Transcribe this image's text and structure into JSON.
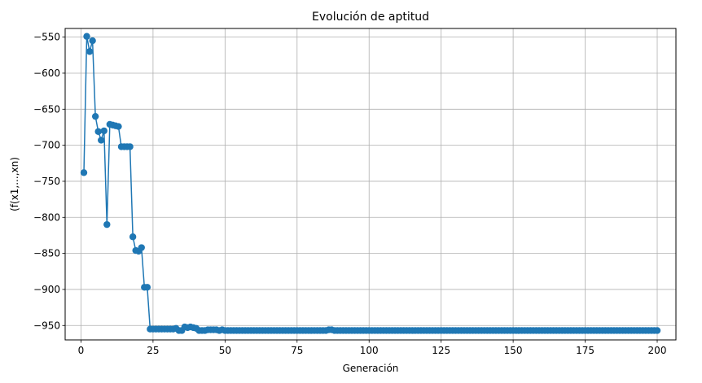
{
  "chart_data": {
    "type": "line",
    "title": "Evolución de aptitud",
    "xlabel": "Generación",
    "ylabel": "(f(x1,...,xn)",
    "xlim": [
      -5.5,
      206.5
    ],
    "ylim": [
      -970,
      -538
    ],
    "xticks": [
      0,
      25,
      50,
      75,
      100,
      125,
      150,
      175,
      200
    ],
    "yticks": [
      -550,
      -600,
      -650,
      -700,
      -750,
      -800,
      -850,
      -900,
      -950
    ],
    "grid": true,
    "markers": true,
    "color": "#1f77b4",
    "head_points": [
      [
        1,
        -738
      ],
      [
        2,
        -549
      ],
      [
        3,
        -570
      ],
      [
        4,
        -555
      ],
      [
        5,
        -660
      ],
      [
        6,
        -681
      ],
      [
        7,
        -693
      ],
      [
        8,
        -680
      ],
      [
        9,
        -810
      ],
      [
        10,
        -671
      ],
      [
        11,
        -672
      ],
      [
        12,
        -673
      ],
      [
        13,
        -674
      ],
      [
        14,
        -702
      ],
      [
        15,
        -702
      ],
      [
        16,
        -702
      ],
      [
        17,
        -702
      ],
      [
        18,
        -827
      ],
      [
        19,
        -846
      ],
      [
        20,
        -847
      ],
      [
        21,
        -842
      ],
      [
        22,
        -897
      ],
      [
        23,
        -897
      ],
      [
        24,
        -955
      ],
      [
        25,
        -955
      ],
      [
        26,
        -955
      ],
      [
        27,
        -955
      ],
      [
        28,
        -955
      ],
      [
        29,
        -955
      ],
      [
        30,
        -955
      ],
      [
        31,
        -955
      ],
      [
        32,
        -955
      ],
      [
        33,
        -954
      ],
      [
        34,
        -957
      ],
      [
        35,
        -957
      ],
      [
        36,
        -952
      ],
      [
        37,
        -953
      ],
      [
        38,
        -952
      ],
      [
        39,
        -953
      ],
      [
        40,
        -954
      ],
      [
        41,
        -957
      ],
      [
        42,
        -957
      ],
      [
        43,
        -957
      ],
      [
        44,
        -956
      ],
      [
        45,
        -956
      ],
      [
        46,
        -956
      ],
      [
        47,
        -956
      ],
      [
        48,
        -957
      ],
      [
        49,
        -956
      ],
      [
        50,
        -957
      ],
      [
        85,
        -957
      ],
      [
        86,
        -956
      ],
      [
        87,
        -956
      ],
      [
        88,
        -957
      ]
    ],
    "steady_value": -957,
    "steady_until": 200
  }
}
